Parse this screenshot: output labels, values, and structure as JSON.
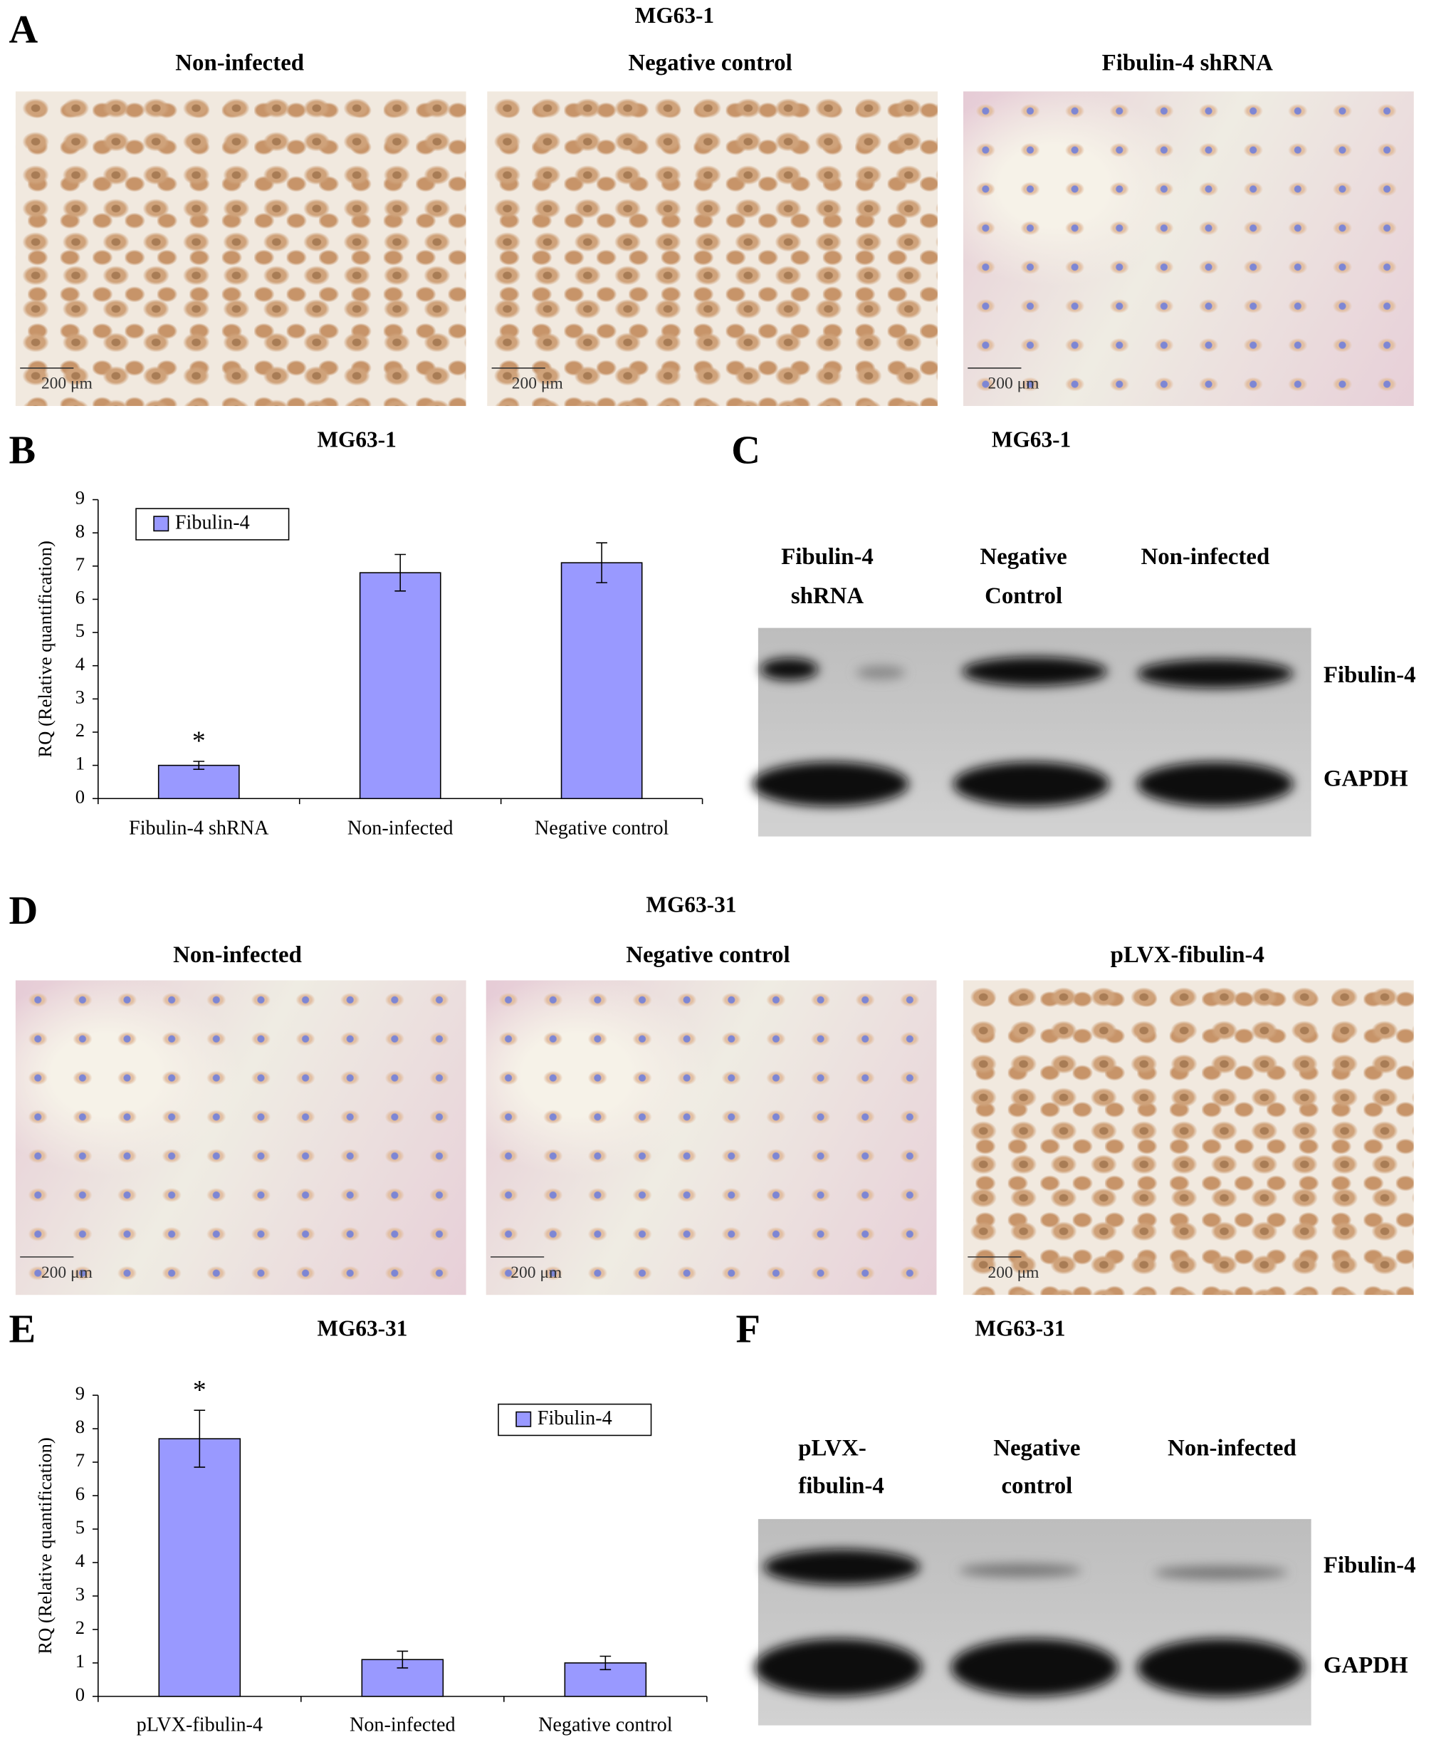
{
  "figure": {
    "panel_a": {
      "letter": "A",
      "title": "MG63-1",
      "images": [
        "Non-infected",
        "Negative control",
        "Fibulin-4 shRNA"
      ],
      "scale_bar": "200 μm"
    },
    "panel_c": {
      "letter": "C",
      "title": "MG63-1",
      "lanes": [
        [
          "Fibulin-4",
          "shRNA"
        ],
        [
          "Negative",
          "Control"
        ],
        [
          "Non-infected"
        ]
      ],
      "bands": [
        "Fibulin-4",
        "GAPDH"
      ]
    },
    "panel_d": {
      "letter": "D",
      "title": "MG63-31",
      "images": [
        "Non-infected",
        "Negative control",
        "pLVX-fibulin-4"
      ],
      "scale_bar": "200 μm"
    },
    "panel_f": {
      "letter": "F",
      "title": "MG63-31",
      "lanes": [
        [
          "pLVX-",
          "fibulin-4"
        ],
        [
          "Negative",
          "control"
        ],
        [
          "Non-infected"
        ]
      ],
      "bands": [
        "Fibulin-4",
        "GAPDH"
      ]
    }
  },
  "chart_data": [
    {
      "type": "bar",
      "panel_label": "B",
      "title": "MG63-1",
      "ylabel": "RQ (Relative quantification)",
      "categories": [
        "Fibulin-4 shRNA",
        "Non-infected",
        "Negative control"
      ],
      "series": [
        {
          "name": "Fibulin-4",
          "color": "#9999ff",
          "values": [
            1.0,
            6.8,
            7.1
          ],
          "errors": [
            0.12,
            0.55,
            0.6
          ]
        }
      ],
      "value_annotations": [
        "*",
        null,
        null
      ],
      "ylim": [
        0,
        9
      ],
      "yticks": [
        0,
        1,
        2,
        3,
        4,
        5,
        6,
        7,
        8,
        9
      ],
      "legend": "upper left"
    },
    {
      "type": "bar",
      "panel_label": "E",
      "title": "MG63-31",
      "ylabel": "RQ (Relative quantification)",
      "categories": [
        "pLVX-fibulin-4",
        "Non-infected",
        "Negative control"
      ],
      "series": [
        {
          "name": "Fibulin-4",
          "color": "#9999ff",
          "values": [
            7.7,
            1.1,
            1.0
          ],
          "errors": [
            0.85,
            0.25,
            0.2
          ]
        }
      ],
      "value_annotations": [
        "*",
        null,
        null
      ],
      "ylim": [
        0,
        9
      ],
      "yticks": [
        0,
        1,
        2,
        3,
        4,
        5,
        6,
        7,
        8,
        9
      ],
      "legend": "upper right"
    }
  ]
}
